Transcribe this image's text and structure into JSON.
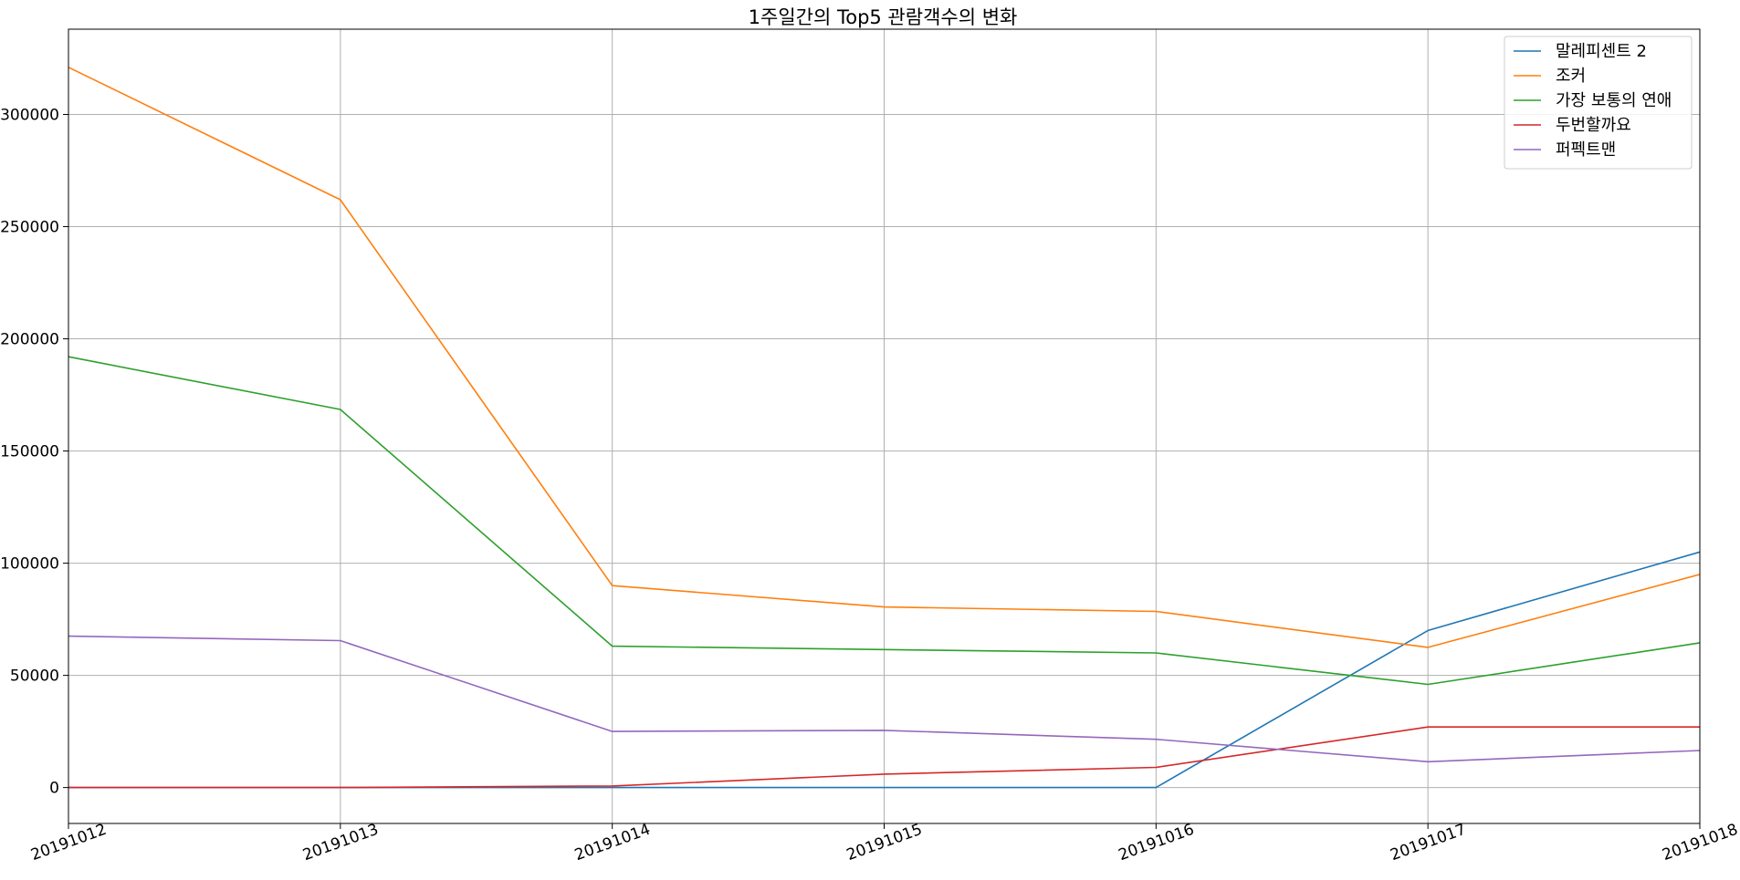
{
  "chart_data": {
    "type": "line",
    "title": "1주일간의 Top5 관람객수의 변화",
    "xlabel": "",
    "ylabel": "",
    "categories": [
      "20191012",
      "20191013",
      "20191014",
      "20191015",
      "20191016",
      "20191017",
      "20191018"
    ],
    "ylim": [
      -16000,
      338000
    ],
    "yticks": [
      0,
      50000,
      100000,
      150000,
      200000,
      250000,
      300000
    ],
    "grid": true,
    "legend_position": "top-right",
    "series": [
      {
        "name": "말레피센트 2",
        "color": "#1f77b4",
        "values": [
          0,
          0,
          0,
          0,
          0,
          70000,
          105000
        ]
      },
      {
        "name": "조커",
        "color": "#ff7f0e",
        "values": [
          321000,
          262000,
          90000,
          80500,
          78500,
          62500,
          95000
        ]
      },
      {
        "name": "가장 보통의 연애",
        "color": "#2ca02c",
        "values": [
          192000,
          168500,
          63000,
          61500,
          60000,
          46000,
          64500
        ]
      },
      {
        "name": "두번할까요",
        "color": "#d62728",
        "values": [
          0,
          0,
          700,
          6000,
          9000,
          27000,
          27000
        ]
      },
      {
        "name": "퍼펙트맨",
        "color": "#9467bd",
        "values": [
          67500,
          65500,
          25000,
          25500,
          21500,
          11500,
          16500
        ]
      }
    ]
  }
}
